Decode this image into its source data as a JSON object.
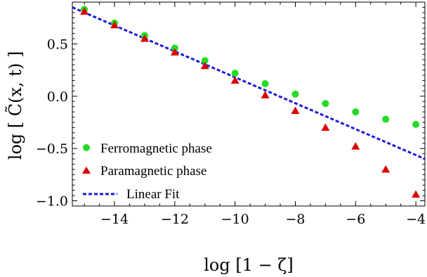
{
  "chart_data": {
    "type": "scatter",
    "xlabel": "log [1 − ζ]",
    "ylabel": "log [ C̃(x, t) ]",
    "xlim": [
      -15.4,
      -3.7
    ],
    "ylim": [
      -1.05,
      0.9
    ],
    "x_ticks": [
      -14,
      -12,
      -10,
      -8,
      -6,
      -4
    ],
    "x_tick_labels": [
      "−14",
      "−12",
      "−10",
      "−8",
      "−6",
      "−4"
    ],
    "y_ticks": [
      -1.0,
      -0.5,
      0.0,
      0.5
    ],
    "y_tick_labels": [
      "−1.0",
      "−0.5",
      "0.0",
      "0.5"
    ],
    "grid": false,
    "legend_position": "bottom-left",
    "series": [
      {
        "name": "Ferromagnetic phase",
        "marker": "circle",
        "color": "#22dd22",
        "x": [
          -15,
          -14,
          -13,
          -12,
          -11,
          -10,
          -9,
          -8,
          -7,
          -6,
          -5,
          -4
        ],
        "y": [
          0.83,
          0.7,
          0.58,
          0.46,
          0.34,
          0.22,
          0.12,
          0.02,
          -0.07,
          -0.15,
          -0.22,
          -0.27
        ]
      },
      {
        "name": "Paramagnetic phase",
        "marker": "triangle",
        "color": "#dd0000",
        "x": [
          -15,
          -14,
          -13,
          -12,
          -11,
          -10,
          -9,
          -8,
          -7,
          -6,
          -5,
          -4
        ],
        "y": [
          0.81,
          0.68,
          0.55,
          0.42,
          0.29,
          0.15,
          0.01,
          -0.14,
          -0.3,
          -0.48,
          -0.7,
          -0.94
        ]
      },
      {
        "name": "Linear Fit",
        "marker": "dashed-line",
        "color": "#1a1adb",
        "x": [
          -15.4,
          -3.7
        ],
        "y": [
          0.85,
          -0.6
        ]
      }
    ]
  }
}
